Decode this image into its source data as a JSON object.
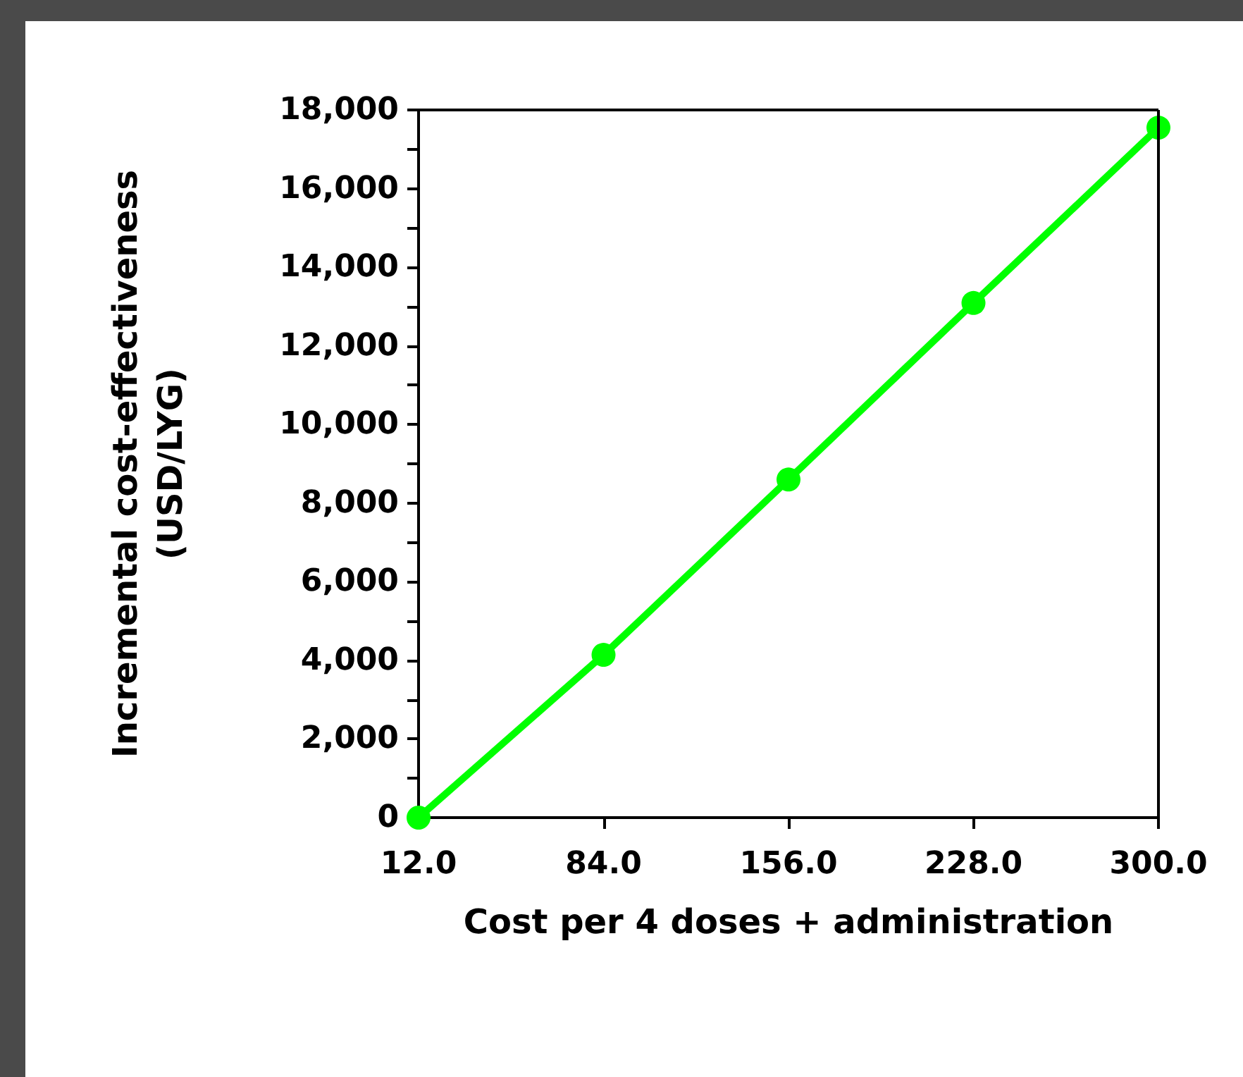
{
  "chart_data": {
    "type": "line",
    "xlabel": "Cost per 4 doses + administration",
    "ylabel": "Incremental cost-effectiveness\n(USD/LYG)",
    "x": [
      12,
      84,
      156,
      228,
      300
    ],
    "series": [
      {
        "color": "#00ff00",
        "values": [
          0,
          4140,
          8600,
          13090,
          17550
        ]
      }
    ],
    "xlim": [
      12,
      300
    ],
    "xticks": [
      {
        "value": 12,
        "label": "12.0"
      },
      {
        "value": 84,
        "label": "84.0"
      },
      {
        "value": 156,
        "label": "156.0"
      },
      {
        "value": 228,
        "label": "228.0"
      },
      {
        "value": 300,
        "label": "300.0"
      }
    ],
    "ylim": [
      0,
      18000
    ],
    "yticks": [
      {
        "value": 0,
        "label": "0"
      },
      {
        "value": 1000,
        "label": null
      },
      {
        "value": 2000,
        "label": "2,000"
      },
      {
        "value": 3000,
        "label": null
      },
      {
        "value": 4000,
        "label": "4,000"
      },
      {
        "value": 5000,
        "label": null
      },
      {
        "value": 6000,
        "label": "6,000"
      },
      {
        "value": 7000,
        "label": null
      },
      {
        "value": 8000,
        "label": "8,000"
      },
      {
        "value": 9000,
        "label": null
      },
      {
        "value": 10000,
        "label": "10,000"
      },
      {
        "value": 11000,
        "label": null
      },
      {
        "value": 12000,
        "label": "12,000"
      },
      {
        "value": 13000,
        "label": null
      },
      {
        "value": 14000,
        "label": "14,000"
      },
      {
        "value": 15000,
        "label": null
      },
      {
        "value": 16000,
        "label": "16,000"
      },
      {
        "value": 17000,
        "label": null
      },
      {
        "value": 18000,
        "label": "18,000"
      }
    ],
    "grid": false,
    "marker": "circle",
    "line_style": "solid"
  }
}
